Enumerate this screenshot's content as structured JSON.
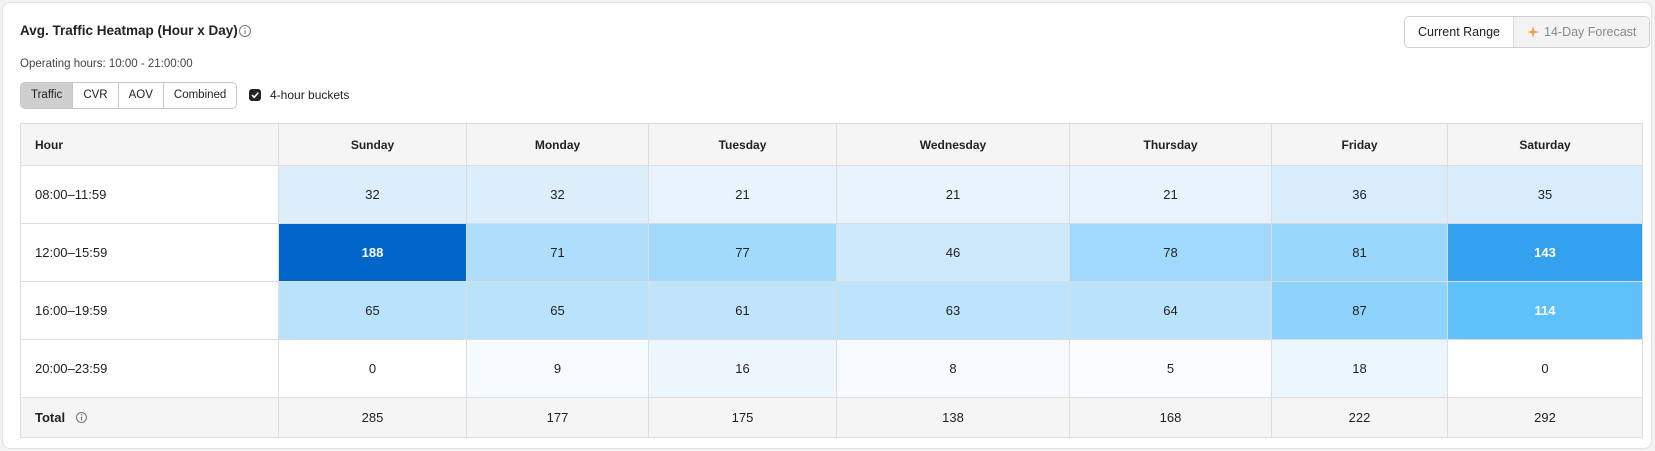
{
  "header": {
    "title": "Avg. Traffic Heatmap (Hour x Day)",
    "subtitle": "Operating hours: 10:00 - 21:00:00"
  },
  "tabs": [
    "Traffic",
    "CVR",
    "AOV",
    "Combined"
  ],
  "bucket_toggle": {
    "label": "4-hour buckets",
    "checked": true
  },
  "range_buttons": [
    "Current Range",
    "14-Day Forecast"
  ],
  "table": {
    "columns": [
      "Hour",
      "Sunday",
      "Monday",
      "Tuesday",
      "Wednesday",
      "Thursday",
      "Friday",
      "Saturday"
    ],
    "rows": [
      [
        "08:00–11:59",
        32,
        32,
        21,
        21,
        21,
        36,
        35
      ],
      [
        "12:00–15:59",
        188,
        71,
        77,
        46,
        78,
        81,
        143
      ],
      [
        "16:00–19:59",
        65,
        65,
        61,
        63,
        64,
        87,
        114
      ],
      [
        "20:00–23:59",
        0,
        9,
        16,
        8,
        5,
        18,
        0
      ]
    ],
    "total": [
      "Total",
      285,
      177,
      175,
      138,
      168,
      222,
      292
    ]
  }
}
